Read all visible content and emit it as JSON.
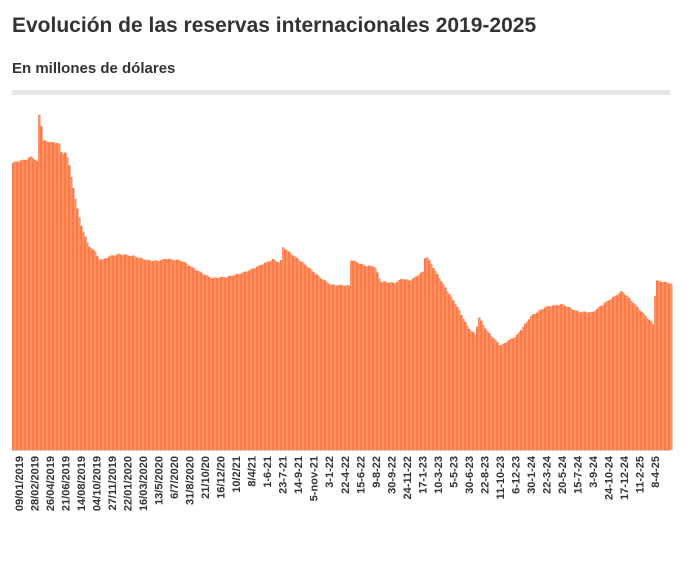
{
  "header": {
    "title": "Evolución de las reservas internacionales 2019-2025",
    "subtitle": "En millones de dólares"
  },
  "colors": {
    "bar": "#ff7a45",
    "area": "#ff9166",
    "text": "#333333",
    "rule": "#e6e6e6"
  },
  "chart_data": {
    "type": "bar",
    "title": "Evolución de las reservas internacionales 2019-2025",
    "subtitle": "En millones de dólares",
    "ylim": [
      0,
      80000
    ],
    "grid": false,
    "x_tick_labels": [
      "09/01/2019",
      "28/02/2019",
      "26/04/2019",
      "21/06/2019",
      "14/08/2019",
      "04/10/2019",
      "27/11/2019",
      "22/01/2020",
      "16/03/2020",
      "13/5/2020",
      "6/7/2020",
      "31/8/2020",
      "21/10/20",
      "16/12/20",
      "10/2/21",
      "8/4/21",
      "1-6-21",
      "23-7-21",
      "14-9-21",
      "5-nov-21",
      "3-1-22",
      "22-4-22",
      "15-6-22",
      "9-8-22",
      "30-9-22",
      "24-11-22",
      "17-1-23",
      "10-3-23",
      "5-5-23",
      "30-6-23",
      "22-8-23",
      "11-10-23",
      "6-12-23",
      "30-1-24",
      "22-3-24",
      "20-5-24",
      "15-7-24",
      "3-9-24",
      "24-10-24",
      "17-12-24",
      "11-2-25",
      "8-4-25"
    ],
    "series": [
      {
        "points": [
          {
            "x": "2019-01-09",
            "y": 65700
          },
          {
            "x": "2019-02-28",
            "y": 66400
          },
          {
            "x": "2019-03-15",
            "y": 67100
          },
          {
            "x": "2019-04-05",
            "y": 65900
          },
          {
            "x": "2019-04-12",
            "y": 77300
          },
          {
            "x": "2019-04-26",
            "y": 70800
          },
          {
            "x": "2019-05-20",
            "y": 70400
          },
          {
            "x": "2019-06-21",
            "y": 70100
          },
          {
            "x": "2019-07-01",
            "y": 67500
          },
          {
            "x": "2019-07-05",
            "y": 67700
          },
          {
            "x": "2019-07-12",
            "y": 68100
          },
          {
            "x": "2019-07-25",
            "y": 66000
          },
          {
            "x": "2019-08-05",
            "y": 62000
          },
          {
            "x": "2019-08-14",
            "y": 58500
          },
          {
            "x": "2019-08-22",
            "y": 56200
          },
          {
            "x": "2019-09-10",
            "y": 50700
          },
          {
            "x": "2019-09-25",
            "y": 48600
          },
          {
            "x": "2019-10-04",
            "y": 46500
          },
          {
            "x": "2019-10-25",
            "y": 45800
          },
          {
            "x": "2019-11-08",
            "y": 43600
          },
          {
            "x": "2019-11-27",
            "y": 43500
          },
          {
            "x": "2019-12-20",
            "y": 44300
          },
          {
            "x": "2020-01-22",
            "y": 44800
          },
          {
            "x": "2020-02-20",
            "y": 44600
          },
          {
            "x": "2020-03-16",
            "y": 44300
          },
          {
            "x": "2020-04-15",
            "y": 43600
          },
          {
            "x": "2020-05-13",
            "y": 43200
          },
          {
            "x": "2020-06-10",
            "y": 43300
          },
          {
            "x": "2020-07-06",
            "y": 43800
          },
          {
            "x": "2020-08-31",
            "y": 43200
          },
          {
            "x": "2020-10-21",
            "y": 41200
          },
          {
            "x": "2020-12-16",
            "y": 39300
          },
          {
            "x": "2021-02-10",
            "y": 39500
          },
          {
            "x": "2021-04-08",
            "y": 40600
          },
          {
            "x": "2021-06-01",
            "y": 42000
          },
          {
            "x": "2021-07-23",
            "y": 43500
          },
          {
            "x": "2021-08-20",
            "y": 42700
          },
          {
            "x": "2021-08-24",
            "y": 46600
          },
          {
            "x": "2021-09-14",
            "y": 45500
          },
          {
            "x": "2021-11-05",
            "y": 42800
          },
          {
            "x": "2022-01-03",
            "y": 39600
          },
          {
            "x": "2022-02-15",
            "y": 37800
          },
          {
            "x": "2022-04-22",
            "y": 37500
          },
          {
            "x": "2022-04-26",
            "y": 43400
          },
          {
            "x": "2022-06-15",
            "y": 42200
          },
          {
            "x": "2022-07-20",
            "y": 42000
          },
          {
            "x": "2022-08-09",
            "y": 38500
          },
          {
            "x": "2022-09-30",
            "y": 38100
          },
          {
            "x": "2022-10-25",
            "y": 39200
          },
          {
            "x": "2022-11-24",
            "y": 38800
          },
          {
            "x": "2023-01-10",
            "y": 40800
          },
          {
            "x": "2023-01-17",
            "y": 44600
          },
          {
            "x": "2023-03-10",
            "y": 39000
          },
          {
            "x": "2023-05-05",
            "y": 33300
          },
          {
            "x": "2023-06-15",
            "y": 28200
          },
          {
            "x": "2023-06-30",
            "y": 27100
          },
          {
            "x": "2023-07-15",
            "y": 26200
          },
          {
            "x": "2023-07-25",
            "y": 30500
          },
          {
            "x": "2023-08-22",
            "y": 27400
          },
          {
            "x": "2023-10-11",
            "y": 23800
          },
          {
            "x": "2023-12-06",
            "y": 26000
          },
          {
            "x": "2024-01-30",
            "y": 30800
          },
          {
            "x": "2024-03-22",
            "y": 32700
          },
          {
            "x": "2024-05-20",
            "y": 33300
          },
          {
            "x": "2024-07-15",
            "y": 31600
          },
          {
            "x": "2024-09-03",
            "y": 31400
          },
          {
            "x": "2024-10-24",
            "y": 34000
          },
          {
            "x": "2024-12-17",
            "y": 36300
          },
          {
            "x": "2025-02-11",
            "y": 32500
          },
          {
            "x": "2025-04-08",
            "y": 28800
          },
          {
            "x": "2025-04-12",
            "y": 28500
          },
          {
            "x": "2025-04-15",
            "y": 38800
          },
          {
            "x": "2025-06-10",
            "y": 38000
          }
        ]
      }
    ]
  }
}
